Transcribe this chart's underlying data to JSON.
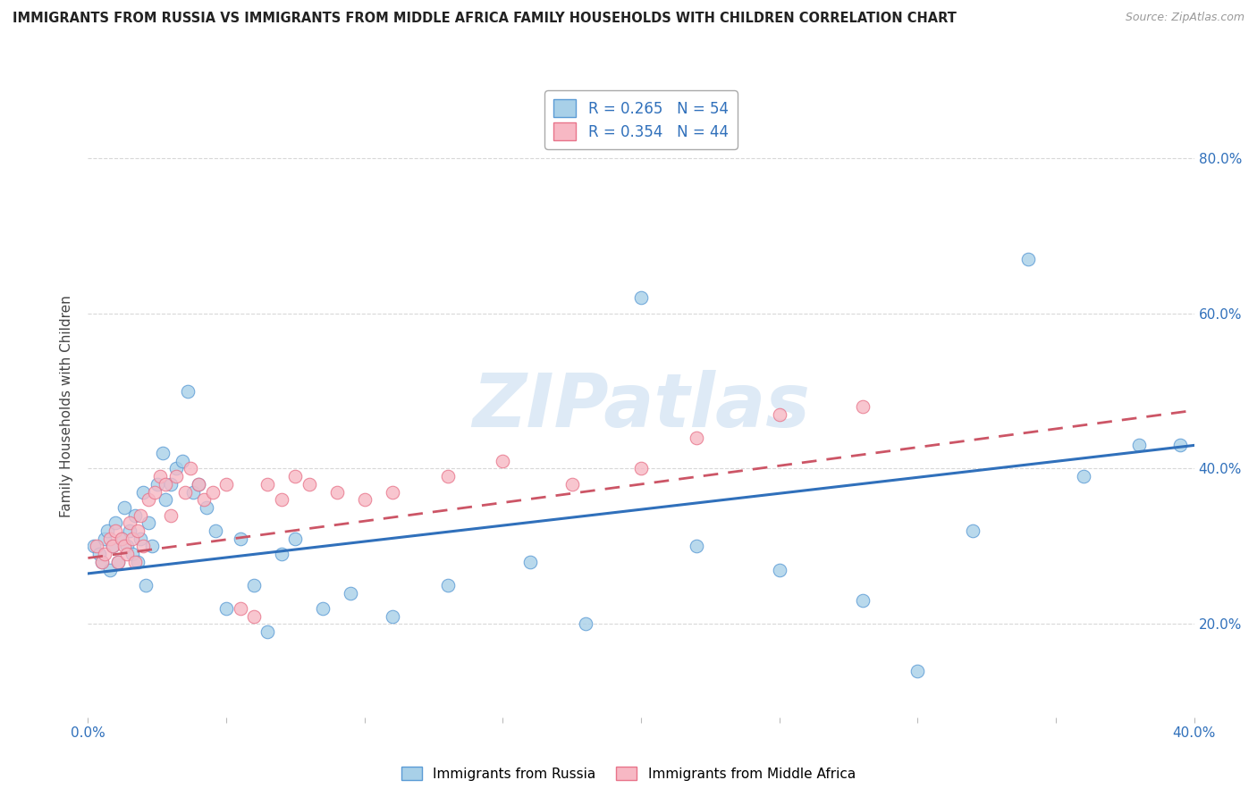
{
  "title": "IMMIGRANTS FROM RUSSIA VS IMMIGRANTS FROM MIDDLE AFRICA FAMILY HOUSEHOLDS WITH CHILDREN CORRELATION CHART",
  "source": "Source: ZipAtlas.com",
  "ylabel": "Family Households with Children",
  "watermark": "ZIPatlas",
  "legend_russia_R": "0.265",
  "legend_russia_N": 54,
  "legend_africa_R": "0.354",
  "legend_africa_N": 44,
  "color_russia_fill": "#A8D0E8",
  "color_africa_fill": "#F7B8C4",
  "color_russia_edge": "#5B9BD5",
  "color_africa_edge": "#E8748A",
  "color_russia_line": "#3070BB",
  "color_africa_line": "#CC5566",
  "xlim": [
    0.0,
    0.4
  ],
  "ylim": [
    0.08,
    0.88
  ],
  "russia_x": [
    0.002,
    0.004,
    0.005,
    0.006,
    0.007,
    0.008,
    0.009,
    0.01,
    0.011,
    0.012,
    0.013,
    0.014,
    0.015,
    0.016,
    0.017,
    0.018,
    0.019,
    0.02,
    0.021,
    0.022,
    0.023,
    0.025,
    0.027,
    0.028,
    0.03,
    0.032,
    0.034,
    0.036,
    0.038,
    0.04,
    0.043,
    0.046,
    0.05,
    0.055,
    0.06,
    0.065,
    0.07,
    0.075,
    0.085,
    0.095,
    0.11,
    0.13,
    0.16,
    0.18,
    0.2,
    0.22,
    0.25,
    0.28,
    0.3,
    0.32,
    0.34,
    0.36,
    0.38,
    0.395
  ],
  "russia_y": [
    0.3,
    0.29,
    0.28,
    0.31,
    0.32,
    0.27,
    0.3,
    0.33,
    0.28,
    0.31,
    0.35,
    0.3,
    0.32,
    0.29,
    0.34,
    0.28,
    0.31,
    0.37,
    0.25,
    0.33,
    0.3,
    0.38,
    0.42,
    0.36,
    0.38,
    0.4,
    0.41,
    0.5,
    0.37,
    0.38,
    0.35,
    0.32,
    0.22,
    0.31,
    0.25,
    0.19,
    0.29,
    0.31,
    0.22,
    0.24,
    0.21,
    0.25,
    0.28,
    0.2,
    0.62,
    0.3,
    0.27,
    0.23,
    0.14,
    0.32,
    0.67,
    0.39,
    0.43,
    0.43
  ],
  "africa_x": [
    0.003,
    0.005,
    0.006,
    0.008,
    0.009,
    0.01,
    0.011,
    0.012,
    0.013,
    0.014,
    0.015,
    0.016,
    0.017,
    0.018,
    0.019,
    0.02,
    0.022,
    0.024,
    0.026,
    0.028,
    0.03,
    0.032,
    0.035,
    0.037,
    0.04,
    0.042,
    0.045,
    0.05,
    0.055,
    0.06,
    0.065,
    0.07,
    0.075,
    0.08,
    0.09,
    0.1,
    0.11,
    0.13,
    0.15,
    0.175,
    0.2,
    0.22,
    0.25,
    0.28
  ],
  "africa_y": [
    0.3,
    0.28,
    0.29,
    0.31,
    0.3,
    0.32,
    0.28,
    0.31,
    0.3,
    0.29,
    0.33,
    0.31,
    0.28,
    0.32,
    0.34,
    0.3,
    0.36,
    0.37,
    0.39,
    0.38,
    0.34,
    0.39,
    0.37,
    0.4,
    0.38,
    0.36,
    0.37,
    0.38,
    0.22,
    0.21,
    0.38,
    0.36,
    0.39,
    0.38,
    0.37,
    0.36,
    0.37,
    0.39,
    0.41,
    0.38,
    0.4,
    0.44,
    0.47,
    0.48
  ],
  "russia_trend_x": [
    0.0,
    0.4
  ],
  "russia_trend_y": [
    0.265,
    0.43
  ],
  "africa_trend_x": [
    0.0,
    0.4
  ],
  "africa_trend_y": [
    0.285,
    0.475
  ],
  "yticks": [
    0.2,
    0.4,
    0.6,
    0.8
  ],
  "ytick_labels": [
    "20.0%",
    "40.0%",
    "60.0%",
    "80.0%"
  ],
  "xticks": [
    0.0,
    0.05,
    0.1,
    0.15,
    0.2,
    0.25,
    0.3,
    0.35,
    0.4
  ],
  "background_color": "#FFFFFF",
  "grid_color": "#D8D8D8"
}
